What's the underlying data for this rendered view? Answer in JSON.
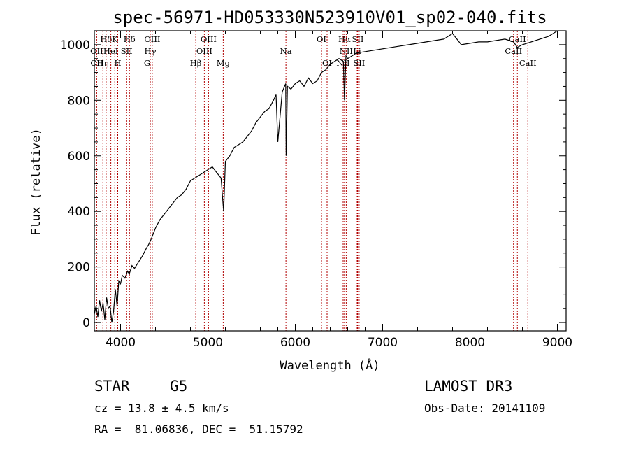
{
  "chart_data": {
    "type": "line",
    "title": "spec-56971-HD053330N523910V01_sp02-040.fits",
    "xlabel": "Wavelength (Å)",
    "ylabel": "Flux (relative)",
    "xlim": [
      3700,
      9100
    ],
    "ylim": [
      -30,
      1050
    ],
    "xticks": [
      4000,
      5000,
      6000,
      7000,
      8000,
      9000
    ],
    "yticks": [
      0,
      200,
      400,
      600,
      800,
      1000
    ],
    "series": [
      {
        "name": "flux",
        "x": [
          3700,
          3720,
          3740,
          3760,
          3780,
          3800,
          3820,
          3840,
          3860,
          3880,
          3900,
          3920,
          3940,
          3960,
          3980,
          4000,
          4020,
          4050,
          4080,
          4100,
          4130,
          4160,
          4200,
          4250,
          4300,
          4320,
          4350,
          4400,
          4450,
          4500,
          4550,
          4600,
          4650,
          4700,
          4750,
          4800,
          4850,
          4900,
          4950,
          5000,
          5050,
          5100,
          5150,
          5180,
          5200,
          5250,
          5300,
          5350,
          5400,
          5450,
          5500,
          5550,
          5600,
          5650,
          5700,
          5750,
          5780,
          5800,
          5850,
          5890,
          5895,
          5910,
          5950,
          6000,
          6050,
          6100,
          6150,
          6200,
          6250,
          6300,
          6350,
          6400,
          6450,
          6500,
          6550,
          6563,
          6580,
          6600,
          6650,
          6700,
          6800,
          6900,
          7000,
          7100,
          7200,
          7300,
          7400,
          7500,
          7600,
          7700,
          7750,
          7800,
          7850,
          7900,
          8000,
          8100,
          8200,
          8300,
          8400,
          8500,
          8540,
          8600,
          8650,
          8700,
          8800,
          8900,
          8950,
          9000
        ],
        "values": [
          30,
          60,
          20,
          80,
          40,
          70,
          10,
          90,
          50,
          60,
          0,
          40,
          120,
          60,
          150,
          140,
          170,
          160,
          185,
          175,
          205,
          195,
          215,
          240,
          270,
          280,
          300,
          340,
          370,
          390,
          410,
          430,
          450,
          460,
          480,
          510,
          520,
          530,
          540,
          550,
          560,
          540,
          520,
          400,
          580,
          600,
          630,
          640,
          650,
          670,
          690,
          720,
          740,
          760,
          770,
          800,
          820,
          650,
          830,
          860,
          600,
          850,
          840,
          860,
          870,
          850,
          880,
          860,
          870,
          900,
          910,
          930,
          940,
          950,
          940,
          800,
          960,
          950,
          960,
          970,
          975,
          980,
          985,
          990,
          995,
          1000,
          1005,
          1010,
          1015,
          1020,
          1030,
          1040,
          1020,
          1000,
          1005,
          1010,
          1010,
          1015,
          1020,
          1010,
          990,
          1000,
          1005,
          1010,
          1020,
          1030,
          1040,
          1050
        ]
      }
    ],
    "spectral_lines": [
      {
        "label": "Hδ",
        "wl": 3835,
        "row": 0
      },
      {
        "label": "K",
        "wl": 3934,
        "row": 0
      },
      {
        "label": "Hδ",
        "wl": 4102,
        "row": 0
      },
      {
        "label": "OII",
        "wl": 3727,
        "row": 1
      },
      {
        "label": "HeI",
        "wl": 3889,
        "row": 1
      },
      {
        "label": "SII",
        "wl": 4070,
        "row": 1
      },
      {
        "label": "OIII",
        "wl": 4363,
        "row": 0
      },
      {
        "label": "Hγ",
        "wl": 4340,
        "row": 1
      },
      {
        "label": "G",
        "wl": 4304,
        "row": 2
      },
      {
        "label": "CII",
        "wl": 3727,
        "row": 2
      },
      {
        "label": "Hη",
        "wl": 3798,
        "row": 2
      },
      {
        "label": "H",
        "wl": 3968,
        "row": 2
      },
      {
        "label": "Hβ",
        "wl": 4861,
        "row": 2
      },
      {
        "label": "OIII",
        "wl": 5007,
        "row": 0
      },
      {
        "label": "OIII",
        "wl": 4959,
        "row": 1
      },
      {
        "label": "Mg",
        "wl": 5175,
        "row": 2
      },
      {
        "label": "Na",
        "wl": 5893,
        "row": 1
      },
      {
        "label": "OI",
        "wl": 6300,
        "row": 0
      },
      {
        "label": "OI",
        "wl": 6364,
        "row": 2
      },
      {
        "label": "Hα",
        "wl": 6563,
        "row": 0
      },
      {
        "label": "SII",
        "wl": 6716,
        "row": 0
      },
      {
        "label": "NII",
        "wl": 6583,
        "row": 1
      },
      {
        "label": "Li",
        "wl": 6708,
        "row": 1
      },
      {
        "label": "NII",
        "wl": 6548,
        "row": 2
      },
      {
        "label": "SII",
        "wl": 6731,
        "row": 2
      },
      {
        "label": "CaII",
        "wl": 8542,
        "row": 0
      },
      {
        "label": "CaII",
        "wl": 8498,
        "row": 1
      },
      {
        "label": "CaII",
        "wl": 8662,
        "row": 2
      }
    ],
    "line_color": "#b00000"
  },
  "info": {
    "object_class": "STAR",
    "subclass": "G5",
    "survey": "LAMOST DR3",
    "cz": "cz = 13.8 ± 4.5 km/s",
    "obs_date": "Obs-Date: 20141109",
    "coords": "RA =  81.06836, DEC =  51.15792"
  }
}
